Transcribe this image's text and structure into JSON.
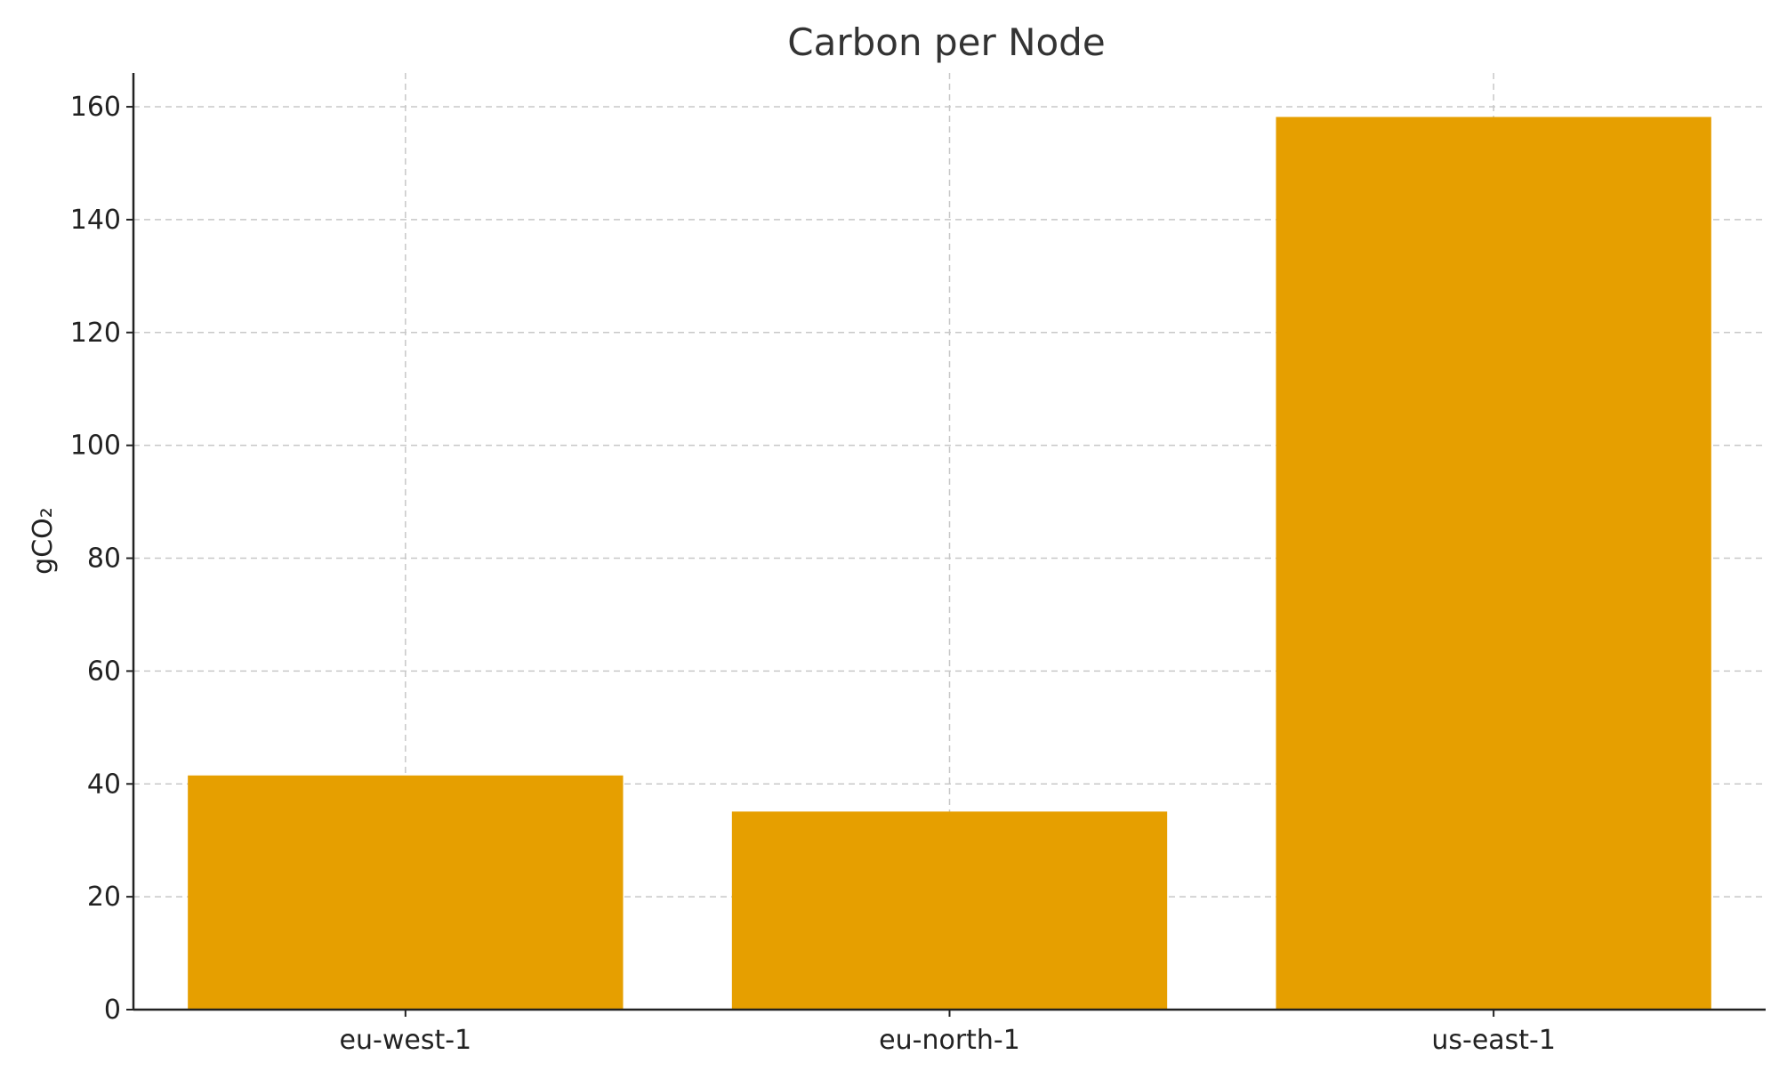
{
  "chart_data": {
    "type": "bar",
    "title": "Carbon per Node",
    "xlabel": "",
    "ylabel": "gCO₂",
    "categories": [
      "eu-west-1",
      "eu-north-1",
      "us-east-1"
    ],
    "values": [
      41.5,
      35.1,
      158.2
    ],
    "ylim": [
      0,
      166
    ],
    "yticks": [
      0,
      20,
      40,
      60,
      80,
      100,
      120,
      140,
      160
    ],
    "grid": true,
    "legend": "none",
    "colors": {
      "bar": "#E69F00",
      "grid": "#c8c8c8",
      "axis": "#222222",
      "title": "#333333"
    }
  }
}
